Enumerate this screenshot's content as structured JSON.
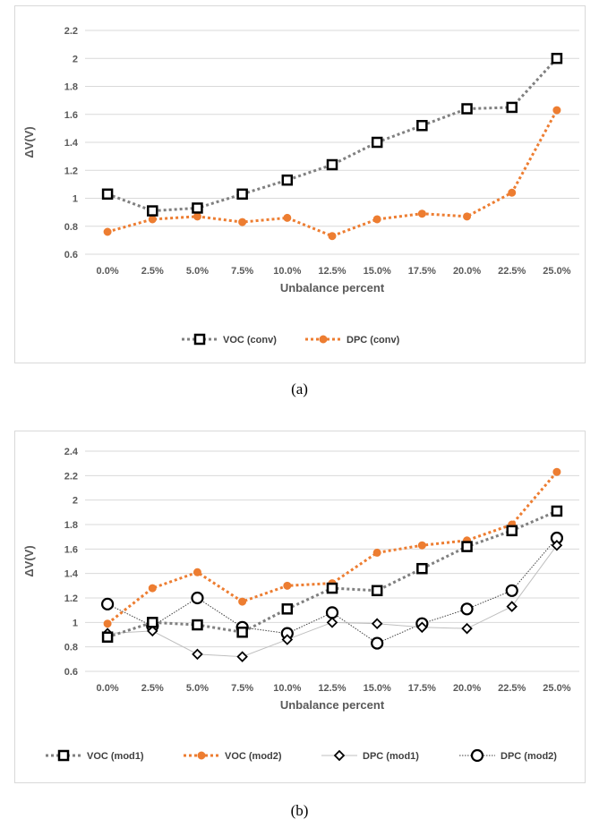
{
  "captions": {
    "a": "(a)",
    "b": "(b)"
  },
  "chart_data": [
    {
      "type": "line",
      "categories": [
        "0.0%",
        "2.5%",
        "5.0%",
        "7.5%",
        "10.0%",
        "12.5%",
        "15.0%",
        "17.5%",
        "20.0%",
        "22.5%",
        "25.0%"
      ],
      "xlabel": "Unbalance  percent",
      "ylabel": "ΔV(V)",
      "ylim": [
        0.6,
        2.2
      ],
      "yticks": [
        "0.6",
        "0.8",
        "1",
        "1.2",
        "1.4",
        "1.6",
        "1.8",
        "2",
        "2.2"
      ],
      "grid": true,
      "legend": "bottom",
      "series": [
        {
          "name": "VOC (conv)",
          "values": [
            1.03,
            0.91,
            0.93,
            1.03,
            1.13,
            1.24,
            1.4,
            1.52,
            1.64,
            1.65,
            2.0
          ],
          "color": "#808080",
          "marker": "square",
          "dash": "dotted"
        },
        {
          "name": "DPC (conv)",
          "values": [
            0.76,
            0.85,
            0.87,
            0.83,
            0.86,
            0.73,
            0.85,
            0.89,
            0.87,
            1.04,
            1.63
          ],
          "color": "#ed7d31",
          "marker": "circle-filled",
          "dash": "dotted"
        }
      ]
    },
    {
      "type": "line",
      "categories": [
        "0.0%",
        "2.5%",
        "5.0%",
        "7.5%",
        "10.0%",
        "12.5%",
        "15.0%",
        "17.5%",
        "20.0%",
        "22.5%",
        "25.0%"
      ],
      "xlabel": "Unbalance  percent",
      "ylabel": "ΔV(V)",
      "ylim": [
        0.6,
        2.4
      ],
      "yticks": [
        "0.6",
        "0.8",
        "1",
        "1.2",
        "1.4",
        "1.6",
        "1.8",
        "2",
        "2.2",
        "2.4"
      ],
      "grid": true,
      "legend": "bottom",
      "series": [
        {
          "name": "VOC (mod1)",
          "values": [
            0.88,
            1.0,
            0.98,
            0.92,
            1.11,
            1.28,
            1.26,
            1.44,
            1.62,
            1.75,
            1.91
          ],
          "color": "#808080",
          "marker": "square",
          "dash": "dotted"
        },
        {
          "name": "VOC (mod2)",
          "values": [
            0.99,
            1.28,
            1.41,
            1.17,
            1.3,
            1.32,
            1.57,
            1.63,
            1.67,
            1.8,
            2.23
          ],
          "color": "#ed7d31",
          "marker": "circle-filled",
          "dash": "dotted"
        },
        {
          "name": "DPC (mod1)",
          "values": [
            0.91,
            0.93,
            0.74,
            0.72,
            0.86,
            1.0,
            0.99,
            0.96,
            0.95,
            1.13,
            1.63
          ],
          "color": "#bfbfbf",
          "marker": "diamond",
          "dash": "solid"
        },
        {
          "name": "DPC (mod2)",
          "values": [
            1.15,
            0.97,
            1.2,
            0.96,
            0.91,
            1.08,
            0.83,
            0.99,
            1.11,
            1.26,
            1.69
          ],
          "color": "#404040",
          "marker": "circle-open",
          "dash": "fine-dotted"
        }
      ]
    }
  ]
}
